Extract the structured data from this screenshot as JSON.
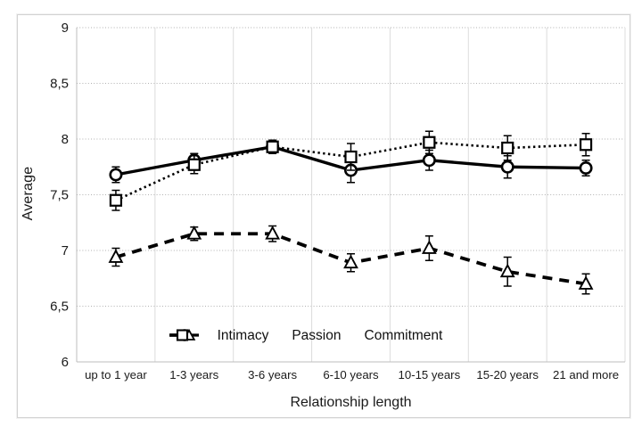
{
  "figure": {
    "background": "#ffffff",
    "border_color": "#d2d2d2"
  },
  "chart_data": {
    "type": "line",
    "title": "",
    "xlabel": "Relationship length",
    "ylabel": "Average",
    "categories": [
      "up to 1 year",
      "1-3 years",
      "3-6 years",
      "6-10 years",
      "10-15 years",
      "15-20 years",
      "21 and more"
    ],
    "series": [
      {
        "name": "Intimacy",
        "marker": "circle",
        "line": "solid",
        "values": [
          7.68,
          7.81,
          7.93,
          7.72,
          7.81,
          7.75,
          7.74
        ],
        "errors": [
          0.07,
          0.06,
          0.05,
          0.11,
          0.09,
          0.1,
          0.07
        ]
      },
      {
        "name": "Passion",
        "marker": "triangle",
        "line": "dashed",
        "values": [
          6.94,
          7.15,
          7.15,
          6.89,
          7.02,
          6.81,
          6.7
        ],
        "errors": [
          0.08,
          0.06,
          0.07,
          0.08,
          0.11,
          0.13,
          0.09
        ]
      },
      {
        "name": "Commitment",
        "marker": "square",
        "line": "dotted",
        "values": [
          7.45,
          7.77,
          7.93,
          7.84,
          7.97,
          7.92,
          7.95
        ],
        "errors": [
          0.09,
          0.08,
          0.06,
          0.12,
          0.1,
          0.11,
          0.1
        ]
      }
    ],
    "ylim": [
      6,
      9
    ],
    "ytick_step": 0.5,
    "ytick_labels": [
      "6",
      "6,5",
      "7",
      "7,5",
      "8",
      "8,5",
      "9"
    ],
    "grid": {
      "horizontal": "dotted",
      "vertical": "solid"
    },
    "legend_position": "bottom-inside",
    "colors": {
      "series": "#000000",
      "marker_fill": "#ffffff",
      "gridline_h": "#b0b0b0",
      "gridline_v": "#dcdcdc",
      "axis": "#bdbdbd",
      "text": "#1a1a1a"
    }
  }
}
